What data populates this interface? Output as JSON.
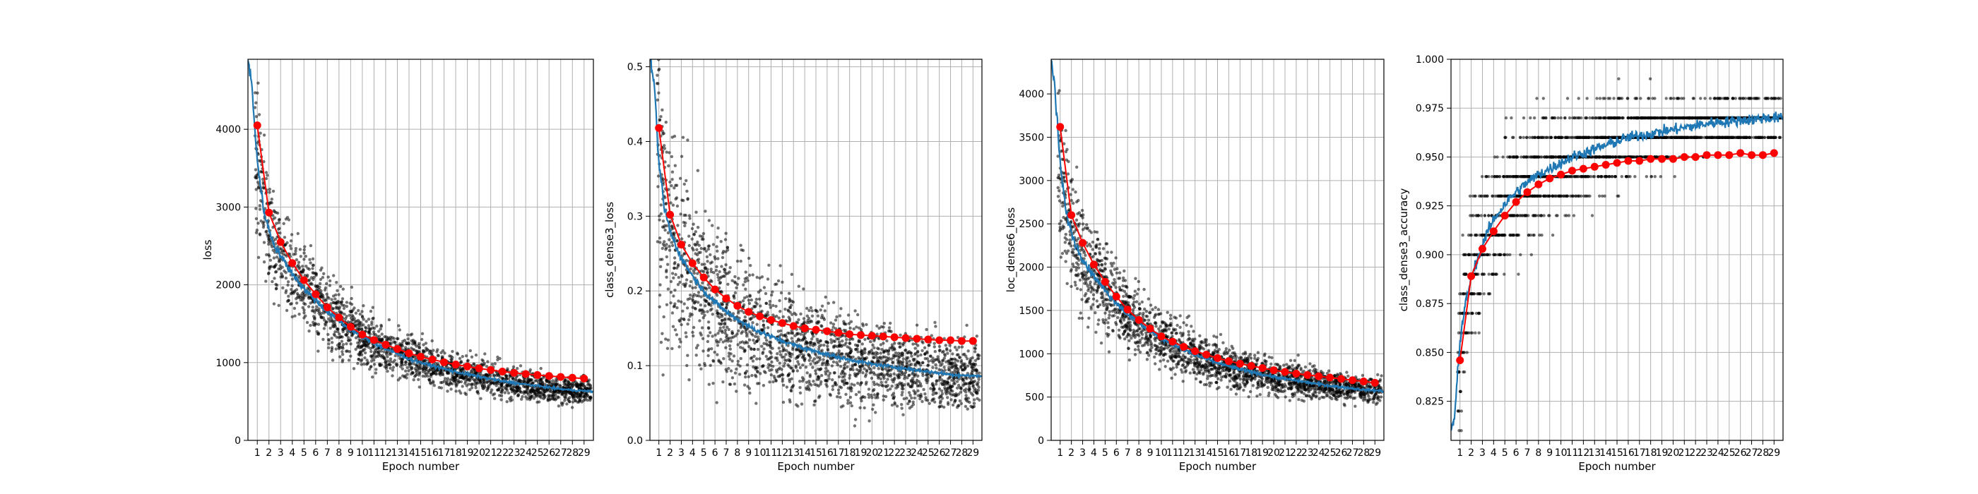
{
  "chart_data": [
    {
      "type": "scatter",
      "title": "",
      "xlabel": "Epoch number",
      "ylabel": "loss",
      "x_ticks": [
        1,
        2,
        3,
        4,
        5,
        6,
        7,
        8,
        9,
        10,
        11,
        12,
        13,
        14,
        15,
        16,
        17,
        18,
        19,
        20,
        21,
        22,
        23,
        24,
        25,
        26,
        27,
        28,
        29
      ],
      "xlim": [
        0.2,
        29.8
      ],
      "ylim": [
        0,
        4900
      ],
      "y_ticks": [
        0,
        1000,
        2000,
        3000,
        4000
      ],
      "y_tick_labels": [
        "0",
        "1000",
        "2000",
        "3000",
        "4000"
      ],
      "grid": true,
      "series": [
        {
          "kind": "scatter-batches",
          "color": "#000000",
          "spread": 0.19,
          "values_from": "batch_mean"
        },
        {
          "kind": "line-batch-mean",
          "color": "#1f77b4",
          "x": [
            0.2,
            0.5,
            0.8,
            1,
            1.5,
            2,
            2.5,
            3,
            3.5,
            4,
            5,
            6,
            7,
            8,
            9,
            10,
            11,
            12,
            13,
            14,
            15,
            16,
            17,
            18,
            19,
            20,
            21,
            22,
            23,
            24,
            25,
            26,
            27,
            28,
            29.8
          ],
          "y": [
            4900,
            4600,
            4000,
            3600,
            3000,
            2700,
            2500,
            2380,
            2250,
            2150,
            1950,
            1800,
            1650,
            1540,
            1420,
            1330,
            1250,
            1180,
            1110,
            1050,
            1000,
            960,
            920,
            880,
            850,
            820,
            790,
            760,
            740,
            720,
            700,
            680,
            660,
            645,
            630
          ]
        },
        {
          "kind": "line-epoch-markers",
          "color": "#ff0000",
          "x": [
            1,
            2,
            3,
            4,
            5,
            6,
            7,
            8,
            9,
            10,
            11,
            12,
            13,
            14,
            15,
            16,
            17,
            18,
            19,
            20,
            21,
            22,
            23,
            24,
            25,
            26,
            27,
            28,
            29
          ],
          "y": [
            4050,
            2930,
            2550,
            2280,
            2060,
            1880,
            1710,
            1580,
            1460,
            1360,
            1290,
            1230,
            1175,
            1120,
            1075,
            1040,
            1005,
            975,
            950,
            925,
            905,
            885,
            868,
            853,
            840,
            828,
            816,
            805,
            795
          ]
        }
      ]
    },
    {
      "type": "scatter",
      "title": "",
      "xlabel": "Epoch number",
      "ylabel": "class_dense3_loss",
      "x_ticks": [
        1,
        2,
        3,
        4,
        5,
        6,
        7,
        8,
        9,
        10,
        11,
        12,
        13,
        14,
        15,
        16,
        17,
        18,
        19,
        20,
        21,
        22,
        23,
        24,
        25,
        26,
        27,
        28,
        29
      ],
      "xlim": [
        0.2,
        29.8
      ],
      "ylim": [
        0,
        0.51
      ],
      "y_ticks": [
        0.0,
        0.1,
        0.2,
        0.3,
        0.4,
        0.5
      ],
      "y_tick_labels": [
        "0.0",
        "0.1",
        "0.2",
        "0.3",
        "0.4",
        "0.5"
      ],
      "grid": true,
      "series": [
        {
          "kind": "scatter-batches",
          "color": "#000000",
          "spread": 0.38,
          "values_from": "batch_mean"
        },
        {
          "kind": "line-batch-mean",
          "color": "#1f77b4",
          "x": [
            0.2,
            0.5,
            0.8,
            1,
            1.5,
            2,
            2.5,
            3,
            3.5,
            4,
            5,
            6,
            7,
            8,
            9,
            10,
            11,
            12,
            13,
            14,
            15,
            16,
            17,
            18,
            19,
            20,
            21,
            22,
            23,
            24,
            25,
            26,
            27,
            28,
            29.8
          ],
          "y": [
            0.51,
            0.49,
            0.42,
            0.37,
            0.31,
            0.28,
            0.26,
            0.245,
            0.232,
            0.22,
            0.2,
            0.185,
            0.172,
            0.162,
            0.153,
            0.145,
            0.139,
            0.133,
            0.128,
            0.123,
            0.119,
            0.115,
            0.111,
            0.108,
            0.105,
            0.102,
            0.1,
            0.098,
            0.096,
            0.094,
            0.092,
            0.09,
            0.088,
            0.087,
            0.086
          ]
        },
        {
          "kind": "line-epoch-markers",
          "color": "#ff0000",
          "x": [
            1,
            2,
            3,
            4,
            5,
            6,
            7,
            8,
            9,
            10,
            11,
            12,
            13,
            14,
            15,
            16,
            17,
            18,
            19,
            20,
            21,
            22,
            23,
            24,
            25,
            26,
            27,
            28,
            29
          ],
          "y": [
            0.418,
            0.302,
            0.262,
            0.237,
            0.218,
            0.202,
            0.19,
            0.18,
            0.172,
            0.166,
            0.161,
            0.157,
            0.153,
            0.15,
            0.148,
            0.146,
            0.144,
            0.142,
            0.141,
            0.14,
            0.139,
            0.138,
            0.137,
            0.136,
            0.135,
            0.134,
            0.134,
            0.133,
            0.133
          ]
        }
      ]
    },
    {
      "type": "scatter",
      "title": "",
      "xlabel": "Epoch number",
      "ylabel": "loc_dense6_loss",
      "x_ticks": [
        1,
        2,
        3,
        4,
        5,
        6,
        7,
        8,
        9,
        10,
        11,
        12,
        13,
        14,
        15,
        16,
        17,
        18,
        19,
        20,
        21,
        22,
        23,
        24,
        25,
        26,
        27,
        28,
        29
      ],
      "xlim": [
        0.2,
        29.8
      ],
      "ylim": [
        0,
        4400
      ],
      "y_ticks": [
        0,
        500,
        1000,
        1500,
        2000,
        2500,
        3000,
        3500,
        4000
      ],
      "y_tick_labels": [
        "0",
        "500",
        "1000",
        "1500",
        "2000",
        "2500",
        "3000",
        "3500",
        "4000"
      ],
      "grid": true,
      "series": [
        {
          "kind": "scatter-batches",
          "color": "#000000",
          "spread": 0.2,
          "values_from": "batch_mean"
        },
        {
          "kind": "line-batch-mean",
          "color": "#1f77b4",
          "x": [
            0.2,
            0.5,
            0.8,
            1,
            1.5,
            2,
            2.5,
            3,
            3.5,
            4,
            5,
            6,
            7,
            8,
            9,
            10,
            11,
            12,
            13,
            14,
            15,
            16,
            17,
            18,
            19,
            20,
            21,
            22,
            23,
            24,
            25,
            26,
            27,
            28,
            29.8
          ],
          "y": [
            4400,
            4100,
            3550,
            3200,
            2650,
            2400,
            2220,
            2100,
            1990,
            1900,
            1730,
            1590,
            1460,
            1360,
            1260,
            1180,
            1110,
            1050,
            990,
            940,
            895,
            855,
            820,
            790,
            760,
            735,
            710,
            690,
            670,
            650,
            630,
            615,
            600,
            585,
            570
          ]
        },
        {
          "kind": "line-epoch-markers",
          "color": "#ff0000",
          "x": [
            1,
            2,
            3,
            4,
            5,
            6,
            7,
            8,
            9,
            10,
            11,
            12,
            13,
            14,
            15,
            16,
            17,
            18,
            19,
            20,
            21,
            22,
            23,
            24,
            25,
            26,
            27,
            28,
            29
          ],
          "y": [
            3620,
            2600,
            2280,
            2030,
            1830,
            1660,
            1510,
            1390,
            1290,
            1200,
            1140,
            1080,
            1030,
            990,
            950,
            915,
            885,
            860,
            835,
            810,
            790,
            770,
            755,
            740,
            725,
            710,
            695,
            680,
            665
          ]
        }
      ]
    },
    {
      "type": "scatter",
      "title": "",
      "xlabel": "Epoch number",
      "ylabel": "class_dense3_accuracy",
      "x_ticks": [
        1,
        2,
        3,
        4,
        5,
        6,
        7,
        8,
        9,
        10,
        11,
        12,
        13,
        14,
        15,
        16,
        17,
        18,
        19,
        20,
        21,
        22,
        23,
        24,
        25,
        26,
        27,
        28,
        29
      ],
      "xlim": [
        0.2,
        29.8
      ],
      "ylim": [
        0.805,
        1.0
      ],
      "y_ticks": [
        0.825,
        0.85,
        0.875,
        0.9,
        0.925,
        0.95,
        0.975,
        1.0
      ],
      "y_tick_labels": [
        "0.825",
        "0.850",
        "0.875",
        "0.900",
        "0.925",
        "0.950",
        "0.975",
        "1.000"
      ],
      "grid": true,
      "series": [
        {
          "kind": "scatter-batches",
          "color": "#000000",
          "quantized_step": 0.01,
          "values_from": "batch_mean"
        },
        {
          "kind": "line-batch-mean",
          "color": "#1f77b4",
          "x": [
            0.2,
            0.5,
            0.8,
            1,
            1.3,
            1.6,
            2,
            2.5,
            3,
            3.5,
            4,
            5,
            6,
            7,
            8,
            9,
            10,
            11,
            12,
            13,
            14,
            15,
            16,
            17,
            18,
            19,
            20,
            21,
            22,
            23,
            24,
            25,
            26,
            27,
            28,
            29.8
          ],
          "y": [
            0.81,
            0.815,
            0.84,
            0.855,
            0.868,
            0.878,
            0.888,
            0.897,
            0.905,
            0.912,
            0.918,
            0.926,
            0.932,
            0.937,
            0.941,
            0.944,
            0.947,
            0.95,
            0.952,
            0.954,
            0.956,
            0.958,
            0.96,
            0.961,
            0.962,
            0.963,
            0.964,
            0.965,
            0.966,
            0.967,
            0.968,
            0.968,
            0.969,
            0.969,
            0.97,
            0.97
          ]
        },
        {
          "kind": "line-epoch-markers",
          "color": "#ff0000",
          "x": [
            1,
            2,
            3,
            4,
            5,
            6,
            7,
            8,
            9,
            10,
            11,
            12,
            13,
            14,
            15,
            16,
            17,
            18,
            19,
            20,
            21,
            22,
            23,
            24,
            25,
            26,
            27,
            28,
            29
          ],
          "y": [
            0.846,
            0.889,
            0.903,
            0.912,
            0.92,
            0.927,
            0.932,
            0.936,
            0.939,
            0.941,
            0.943,
            0.944,
            0.945,
            0.946,
            0.947,
            0.948,
            0.948,
            0.949,
            0.949,
            0.949,
            0.95,
            0.95,
            0.951,
            0.951,
            0.951,
            0.952,
            0.951,
            0.951,
            0.952
          ]
        }
      ]
    }
  ]
}
